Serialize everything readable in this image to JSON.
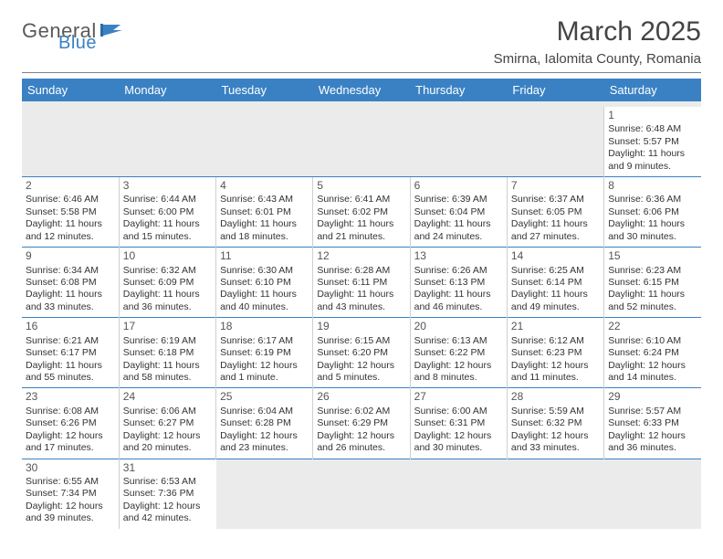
{
  "brand": {
    "word1": "General",
    "word2": "Blue"
  },
  "title": "March 2025",
  "location": "Smirna, Ialomita County, Romania",
  "colors": {
    "header_blue": "#3a81c4",
    "grey_light": "#ebebeb",
    "text": "#333333",
    "row_border": "#3a81c4"
  },
  "typography": {
    "title_fontsize_pt": 22,
    "location_fontsize_pt": 11,
    "header_fontsize_pt": 10,
    "cell_fontsize_pt": 8
  },
  "calendar": {
    "type": "table",
    "columns": [
      "Sunday",
      "Monday",
      "Tuesday",
      "Wednesday",
      "Thursday",
      "Friday",
      "Saturday"
    ],
    "leading_empty": 6,
    "days": [
      {
        "n": 1,
        "sunrise": "6:48 AM",
        "sunset": "5:57 PM",
        "day_h": 11,
        "day_m": 9
      },
      {
        "n": 2,
        "sunrise": "6:46 AM",
        "sunset": "5:58 PM",
        "day_h": 11,
        "day_m": 12
      },
      {
        "n": 3,
        "sunrise": "6:44 AM",
        "sunset": "6:00 PM",
        "day_h": 11,
        "day_m": 15
      },
      {
        "n": 4,
        "sunrise": "6:43 AM",
        "sunset": "6:01 PM",
        "day_h": 11,
        "day_m": 18
      },
      {
        "n": 5,
        "sunrise": "6:41 AM",
        "sunset": "6:02 PM",
        "day_h": 11,
        "day_m": 21
      },
      {
        "n": 6,
        "sunrise": "6:39 AM",
        "sunset": "6:04 PM",
        "day_h": 11,
        "day_m": 24
      },
      {
        "n": 7,
        "sunrise": "6:37 AM",
        "sunset": "6:05 PM",
        "day_h": 11,
        "day_m": 27
      },
      {
        "n": 8,
        "sunrise": "6:36 AM",
        "sunset": "6:06 PM",
        "day_h": 11,
        "day_m": 30
      },
      {
        "n": 9,
        "sunrise": "6:34 AM",
        "sunset": "6:08 PM",
        "day_h": 11,
        "day_m": 33
      },
      {
        "n": 10,
        "sunrise": "6:32 AM",
        "sunset": "6:09 PM",
        "day_h": 11,
        "day_m": 36
      },
      {
        "n": 11,
        "sunrise": "6:30 AM",
        "sunset": "6:10 PM",
        "day_h": 11,
        "day_m": 40
      },
      {
        "n": 12,
        "sunrise": "6:28 AM",
        "sunset": "6:11 PM",
        "day_h": 11,
        "day_m": 43
      },
      {
        "n": 13,
        "sunrise": "6:26 AM",
        "sunset": "6:13 PM",
        "day_h": 11,
        "day_m": 46
      },
      {
        "n": 14,
        "sunrise": "6:25 AM",
        "sunset": "6:14 PM",
        "day_h": 11,
        "day_m": 49
      },
      {
        "n": 15,
        "sunrise": "6:23 AM",
        "sunset": "6:15 PM",
        "day_h": 11,
        "day_m": 52
      },
      {
        "n": 16,
        "sunrise": "6:21 AM",
        "sunset": "6:17 PM",
        "day_h": 11,
        "day_m": 55
      },
      {
        "n": 17,
        "sunrise": "6:19 AM",
        "sunset": "6:18 PM",
        "day_h": 11,
        "day_m": 58
      },
      {
        "n": 18,
        "sunrise": "6:17 AM",
        "sunset": "6:19 PM",
        "day_h": 12,
        "day_m": 1
      },
      {
        "n": 19,
        "sunrise": "6:15 AM",
        "sunset": "6:20 PM",
        "day_h": 12,
        "day_m": 5
      },
      {
        "n": 20,
        "sunrise": "6:13 AM",
        "sunset": "6:22 PM",
        "day_h": 12,
        "day_m": 8
      },
      {
        "n": 21,
        "sunrise": "6:12 AM",
        "sunset": "6:23 PM",
        "day_h": 12,
        "day_m": 11
      },
      {
        "n": 22,
        "sunrise": "6:10 AM",
        "sunset": "6:24 PM",
        "day_h": 12,
        "day_m": 14
      },
      {
        "n": 23,
        "sunrise": "6:08 AM",
        "sunset": "6:26 PM",
        "day_h": 12,
        "day_m": 17
      },
      {
        "n": 24,
        "sunrise": "6:06 AM",
        "sunset": "6:27 PM",
        "day_h": 12,
        "day_m": 20
      },
      {
        "n": 25,
        "sunrise": "6:04 AM",
        "sunset": "6:28 PM",
        "day_h": 12,
        "day_m": 23
      },
      {
        "n": 26,
        "sunrise": "6:02 AM",
        "sunset": "6:29 PM",
        "day_h": 12,
        "day_m": 26
      },
      {
        "n": 27,
        "sunrise": "6:00 AM",
        "sunset": "6:31 PM",
        "day_h": 12,
        "day_m": 30
      },
      {
        "n": 28,
        "sunrise": "5:59 AM",
        "sunset": "6:32 PM",
        "day_h": 12,
        "day_m": 33
      },
      {
        "n": 29,
        "sunrise": "5:57 AM",
        "sunset": "6:33 PM",
        "day_h": 12,
        "day_m": 36
      },
      {
        "n": 30,
        "sunrise": "6:55 AM",
        "sunset": "7:34 PM",
        "day_h": 12,
        "day_m": 39
      },
      {
        "n": 31,
        "sunrise": "6:53 AM",
        "sunset": "7:36 PM",
        "day_h": 12,
        "day_m": 42
      }
    ],
    "labels": {
      "sunrise_prefix": "Sunrise: ",
      "sunset_prefix": "Sunset: ",
      "daylight_prefix": "Daylight: ",
      "hours_word": " hours",
      "and_word": "and ",
      "minutes_word": " minutes."
    }
  }
}
